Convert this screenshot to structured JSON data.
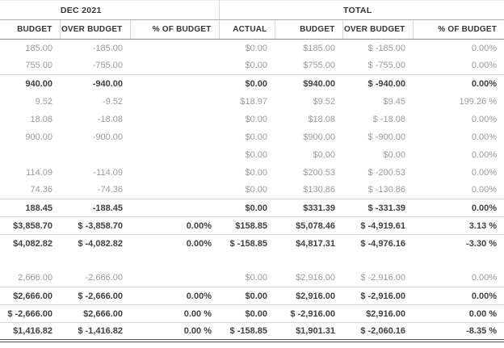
{
  "report": {
    "colors": {
      "background": "#ffffff",
      "header_text": "#393536",
      "muted_text": "#9b9b9b",
      "bold_text": "#404040",
      "light_rule": "#d5d5d5",
      "header_rule": "#8f8f8f",
      "total_rule": "#4f4f4f"
    },
    "sections": [
      {
        "label": "DEC 2021",
        "span": 3
      },
      {
        "label": "TOTAL",
        "span": 4
      }
    ],
    "column_headers": [
      "BUDGET",
      "OVER BUDGET",
      "% OF BUDGET",
      "ACTUAL",
      "BUDGET",
      "OVER BUDGET",
      "% OF BUDGET"
    ],
    "rows": [
      {
        "type": "data",
        "bold": false,
        "line_above": false,
        "cells": [
          "185.00",
          "-185.00",
          "",
          "$0.00",
          "$185.00",
          "$ -185.00",
          "0.00%"
        ]
      },
      {
        "type": "data",
        "bold": false,
        "line_above": false,
        "cells": [
          "755.00",
          "-755.00",
          "",
          "$0.00",
          "$755.00",
          "$ -755.00",
          "0.00%"
        ]
      },
      {
        "type": "data",
        "bold": true,
        "line_above": true,
        "cells": [
          "940.00",
          "-940.00",
          "",
          "$0.00",
          "$940.00",
          "$ -940.00",
          "0.00%"
        ]
      },
      {
        "type": "data",
        "bold": false,
        "line_above": false,
        "cells": [
          "9.52",
          "-9.52",
          "",
          "$18.97",
          "$9.52",
          "$9.45",
          "199.26 %"
        ]
      },
      {
        "type": "data",
        "bold": false,
        "line_above": false,
        "cells": [
          "18.08",
          "-18.08",
          "",
          "$0.00",
          "$18.08",
          "$ -18.08",
          "0.00%"
        ]
      },
      {
        "type": "data",
        "bold": false,
        "line_above": false,
        "cells": [
          "900.00",
          "-900.00",
          "",
          "$0.00",
          "$900.00",
          "$ -900.00",
          "0.00%"
        ]
      },
      {
        "type": "data",
        "bold": false,
        "line_above": false,
        "cells": [
          "",
          "",
          "",
          "$0.00",
          "$0.00",
          "$0.00",
          "0.00%"
        ]
      },
      {
        "type": "data",
        "bold": false,
        "line_above": false,
        "cells": [
          "114.09",
          "-114.09",
          "",
          "$0.00",
          "$200.53",
          "$ -200.53",
          "0.00%"
        ]
      },
      {
        "type": "data",
        "bold": false,
        "line_above": false,
        "cells": [
          "74.36",
          "-74.36",
          "",
          "$0.00",
          "$130.86",
          "$ -130.86",
          "0.00%"
        ]
      },
      {
        "type": "data",
        "bold": true,
        "line_above": true,
        "cells": [
          "188.45",
          "-188.45",
          "",
          "$0.00",
          "$331.39",
          "$ -331.39",
          "0.00%"
        ]
      },
      {
        "type": "data",
        "bold": true,
        "line_above": true,
        "cells": [
          "$3,858.70",
          "$ -3,858.70",
          "0.00%",
          "$158.85",
          "$5,078.46",
          "$ -4,919.61",
          "3.13 %"
        ]
      },
      {
        "type": "data",
        "bold": true,
        "line_above": true,
        "cells": [
          "$4,082.82",
          "$ -4,082.82",
          "0.00%",
          "$ -158.85",
          "$4,817.31",
          "$ -4,976.16",
          "-3.30 %"
        ]
      },
      {
        "type": "spacer",
        "bold": false,
        "line_above": false,
        "cells": [
          "",
          "",
          "",
          "",
          "",
          "",
          ""
        ]
      },
      {
        "type": "data",
        "bold": false,
        "line_above": false,
        "cells": [
          "2,666.00",
          "-2,666.00",
          "",
          "$0.00",
          "$2,916.00",
          "$ -2,916.00",
          "0.00%"
        ]
      },
      {
        "type": "data",
        "bold": true,
        "line_above": true,
        "cells": [
          "$2,666.00",
          "$ -2,666.00",
          "0.00%",
          "$0.00",
          "$2,916.00",
          "$ -2,916.00",
          "0.00%"
        ]
      },
      {
        "type": "data",
        "bold": true,
        "line_above": true,
        "cells": [
          "$ -2,666.00",
          "$2,666.00",
          "0.00 %",
          "$0.00",
          "$ -2,916.00",
          "$2,916.00",
          "0.00 %"
        ]
      },
      {
        "type": "data",
        "bold": true,
        "line_above": true,
        "double_bottom": true,
        "cells": [
          "$1,416.82",
          "$ -1,416.82",
          "0.00 %",
          "$ -158.85",
          "$1,901.31",
          "$ -2,060.16",
          "-8.35 %"
        ]
      }
    ]
  }
}
